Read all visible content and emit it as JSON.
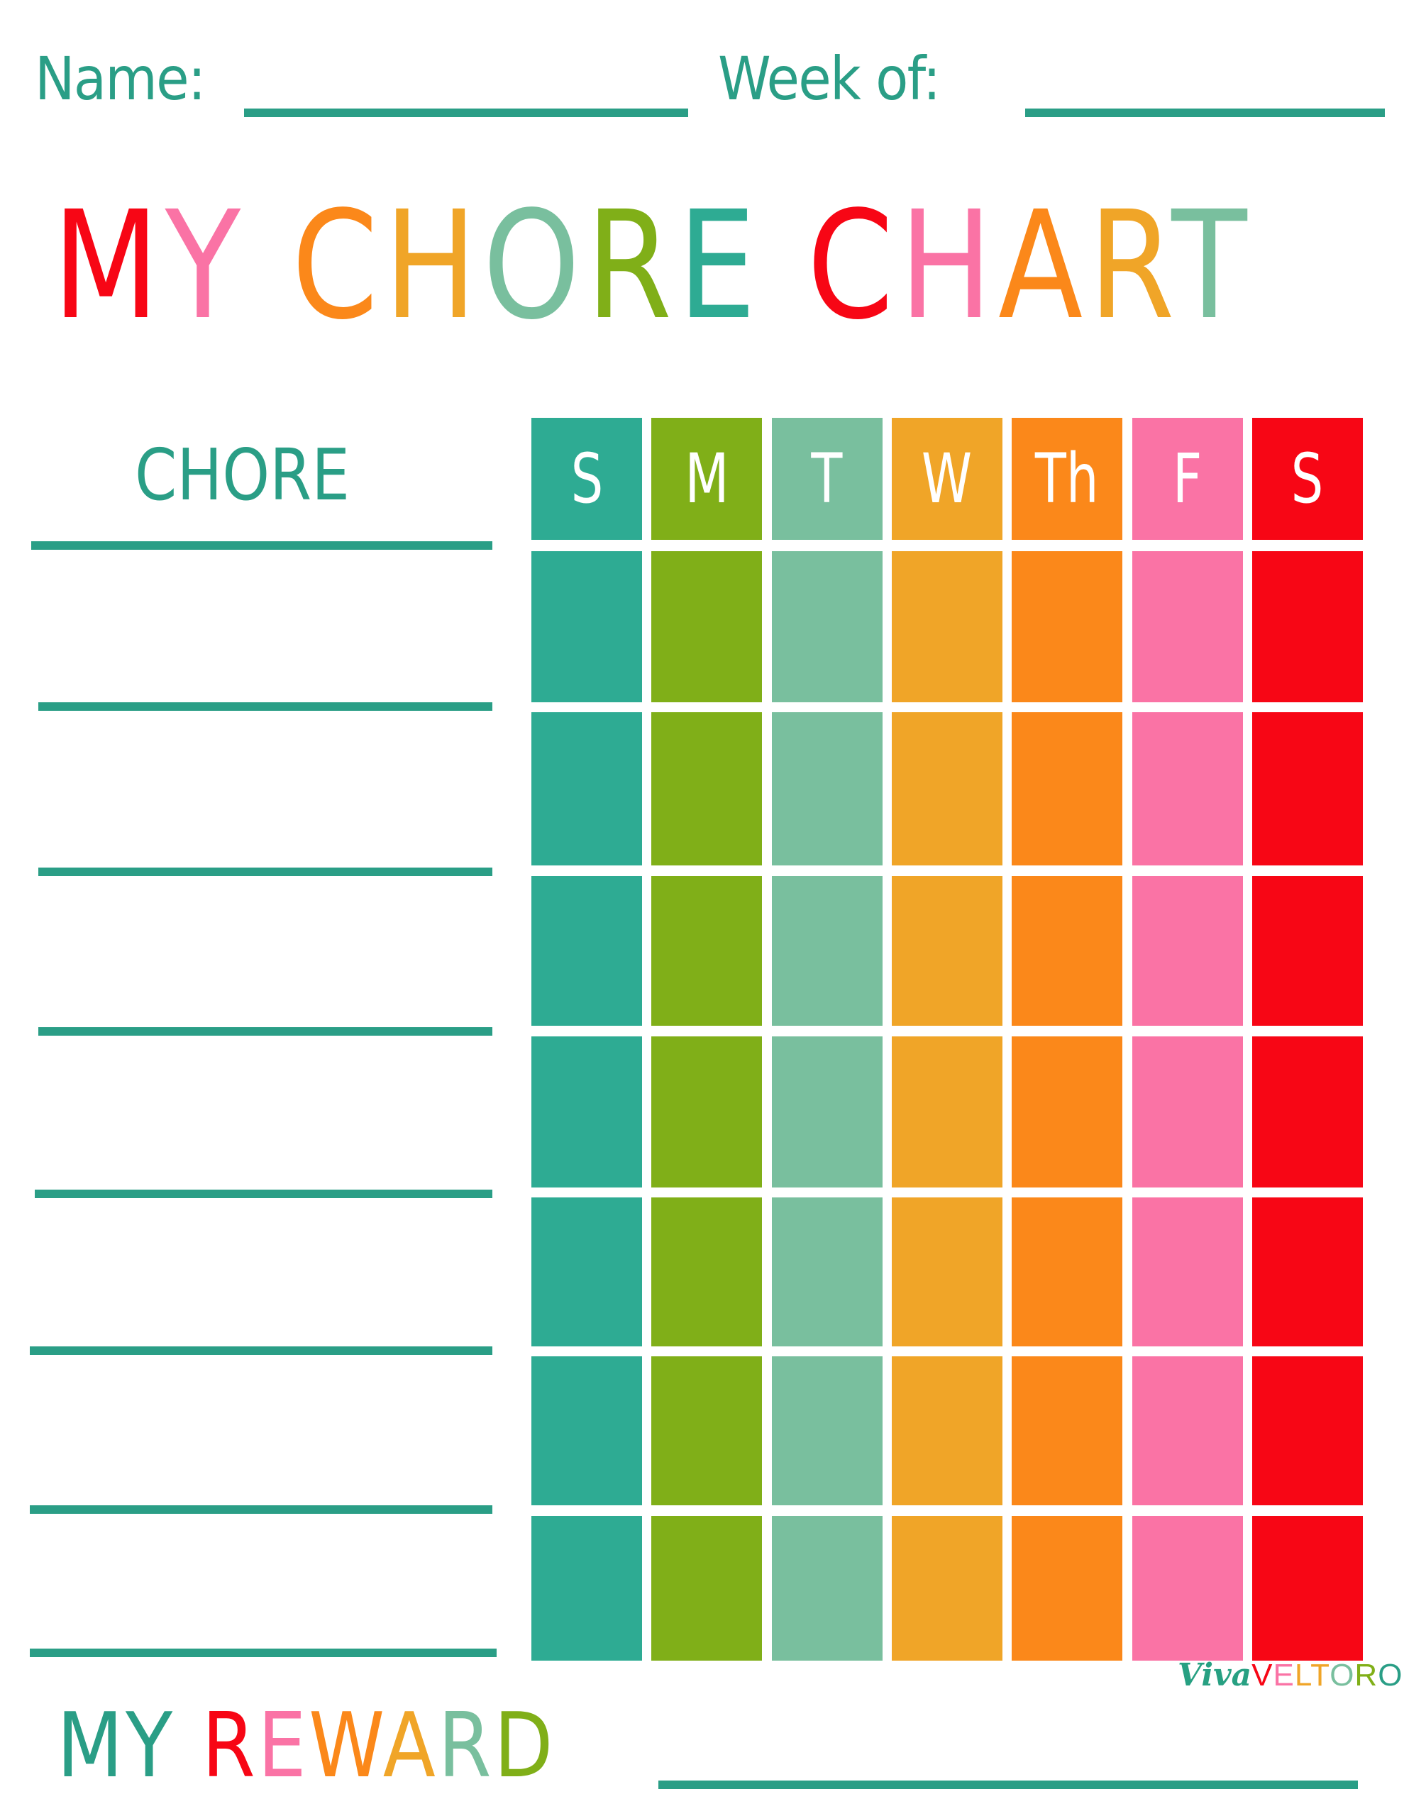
{
  "header": {
    "name_label": "Name:",
    "week_label": "Week of:"
  },
  "title": {
    "letters": [
      {
        "ch": "M",
        "color": "#F70615"
      },
      {
        "ch": "Y",
        "color": "#FA73A5"
      },
      {
        "ch": " ",
        "color": "#ffffff"
      },
      {
        "ch": "C",
        "color": "#FB881A"
      },
      {
        "ch": "H",
        "color": "#F0A528"
      },
      {
        "ch": "O",
        "color": "#79BF9E"
      },
      {
        "ch": "R",
        "color": "#80AF18"
      },
      {
        "ch": "E",
        "color": "#2EAB93"
      },
      {
        "ch": " ",
        "color": "#ffffff"
      },
      {
        "ch": "C",
        "color": "#F70615"
      },
      {
        "ch": "H",
        "color": "#FA73A5"
      },
      {
        "ch": "A",
        "color": "#FB881A"
      },
      {
        "ch": "R",
        "color": "#F0A528"
      },
      {
        "ch": "T",
        "color": "#79BF9E"
      }
    ],
    "text": "MY CHORE CHART"
  },
  "chore_column": {
    "heading": "CHORE",
    "rows": 7
  },
  "days": [
    {
      "label": "S",
      "color": "#2EAB93"
    },
    {
      "label": "M",
      "color": "#80AF18"
    },
    {
      "label": "T",
      "color": "#79BF9E"
    },
    {
      "label": "W",
      "color": "#F0A528"
    },
    {
      "label": "Th",
      "color": "#FB881A"
    },
    {
      "label": "F",
      "color": "#FA73A5"
    },
    {
      "label": "S",
      "color": "#F70615"
    }
  ],
  "reward": {
    "text": "MY REWARD",
    "letters": [
      {
        "ch": "M",
        "color": "#2A9E86"
      },
      {
        "ch": "Y",
        "color": "#2A9E86"
      },
      {
        "ch": " ",
        "color": "#ffffff"
      },
      {
        "ch": "R",
        "color": "#F70615"
      },
      {
        "ch": "E",
        "color": "#FA73A5"
      },
      {
        "ch": "W",
        "color": "#FB881A"
      },
      {
        "ch": "A",
        "color": "#F0A528"
      },
      {
        "ch": "R",
        "color": "#79BF9E"
      },
      {
        "ch": "D",
        "color": "#80AF18"
      }
    ]
  },
  "watermark": {
    "viva": "Viva",
    "veltoro_letters": [
      {
        "ch": "V",
        "color": "#F70615"
      },
      {
        "ch": "E",
        "color": "#FA73A5"
      },
      {
        "ch": "L",
        "color": "#F0A528"
      },
      {
        "ch": "T",
        "color": "#F0A528"
      },
      {
        "ch": "O",
        "color": "#79BF9E"
      },
      {
        "ch": "R",
        "color": "#80AF18"
      },
      {
        "ch": "O",
        "color": "#2A9E86"
      }
    ]
  },
  "colors": {
    "line": "#2A9E86"
  }
}
